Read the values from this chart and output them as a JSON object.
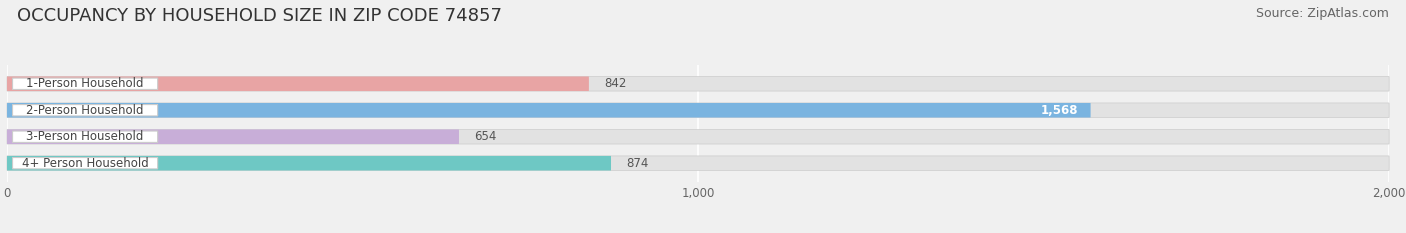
{
  "title": "OCCUPANCY BY HOUSEHOLD SIZE IN ZIP CODE 74857",
  "source": "Source: ZipAtlas.com",
  "categories": [
    "1-Person Household",
    "2-Person Household",
    "3-Person Household",
    "4+ Person Household"
  ],
  "values": [
    842,
    1568,
    654,
    874
  ],
  "bar_colors": [
    "#e8a4a4",
    "#7ab4e0",
    "#c8aed8",
    "#6ec8c4"
  ],
  "bar_labels": [
    "842",
    "1,568",
    "654",
    "874"
  ],
  "label_in_bar": [
    false,
    true,
    false,
    false
  ],
  "xlim": [
    0,
    2000
  ],
  "xticks": [
    0,
    1000,
    2000
  ],
  "xtick_labels": [
    "0",
    "1,000",
    "2,000"
  ],
  "background_color": "#f0f0f0",
  "bar_bg_color": "#e2e2e2",
  "title_fontsize": 13,
  "source_fontsize": 9,
  "bar_height": 0.55
}
